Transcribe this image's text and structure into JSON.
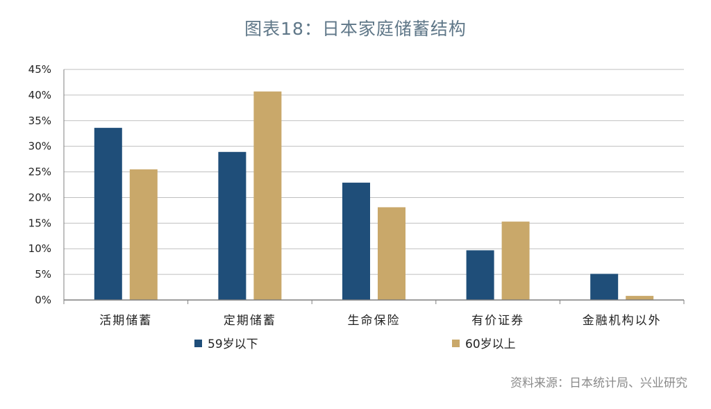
{
  "title": "图表18：日本家庭储蓄结构",
  "source": "资料来源：日本统计局、兴业研究",
  "colors": {
    "series_1": "#1f4e79",
    "series_2": "#c9a86a",
    "grid": "#bfbfbf",
    "axis": "#7f7f7f"
  },
  "chart_data": {
    "type": "bar",
    "title": "图表18：日本家庭储蓄结构",
    "categories": [
      "活期储蓄",
      "定期储蓄",
      "生命保险",
      "有价证券",
      "金融机构以外"
    ],
    "series": [
      {
        "name": "59岁以下",
        "values": [
          33.6,
          28.9,
          22.9,
          9.7,
          5.1
        ]
      },
      {
        "name": "60岁以上",
        "values": [
          25.5,
          40.7,
          18.1,
          15.3,
          0.8
        ]
      }
    ],
    "ylim": [
      0,
      45
    ],
    "yticks": [
      0,
      5,
      10,
      15,
      20,
      25,
      30,
      35,
      40,
      45
    ],
    "ytick_labels": [
      "0%",
      "5%",
      "10%",
      "15%",
      "20%",
      "25%",
      "30%",
      "35%",
      "40%",
      "45%"
    ],
    "grid": true,
    "legend": "bottom",
    "xlabel": "",
    "ylabel": ""
  }
}
